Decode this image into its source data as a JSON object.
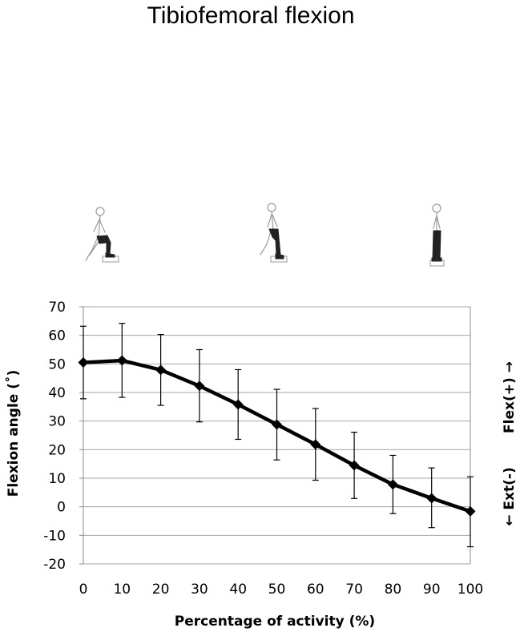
{
  "chart_data": {
    "type": "line",
    "title": "Tibiofemoral flexion",
    "xlabel": "Percentage of activity (%)",
    "ylabel": "Flexion angle (˚)",
    "x": [
      0,
      10,
      20,
      30,
      40,
      50,
      60,
      70,
      80,
      90,
      100
    ],
    "x_ticks": [
      "0",
      "10",
      "20",
      "30",
      "40",
      "50",
      "60",
      "70",
      "80",
      "90",
      "100"
    ],
    "y_ticks": [
      "70",
      "60",
      "50",
      "40",
      "30",
      "20",
      "10",
      "0",
      "-10",
      "-20"
    ],
    "ylim": [
      -20,
      70
    ],
    "xlim": [
      0,
      100
    ],
    "grid": true,
    "series": [
      {
        "values": [
          50.5,
          51.2,
          47.9,
          42.3,
          35.8,
          28.8,
          21.8,
          14.5,
          7.8,
          3.0,
          -1.6
        ],
        "error_low": [
          37.8,
          38.3,
          35.5,
          29.7,
          23.6,
          16.4,
          9.3,
          2.9,
          -2.4,
          -7.3,
          -14.0
        ],
        "error_high": [
          63.2,
          64.2,
          60.3,
          55.0,
          48.0,
          41.1,
          34.4,
          26.1,
          18.0,
          13.6,
          10.5
        ],
        "color": "#000000",
        "marker": "diamond"
      }
    ],
    "side_annotations": {
      "top": "Flex(+) →",
      "bottom": "← Ext(-)"
    },
    "figure_icons": [
      "stair-start-figure-icon",
      "stair-mid-figure-icon",
      "stair-end-figure-icon"
    ]
  }
}
